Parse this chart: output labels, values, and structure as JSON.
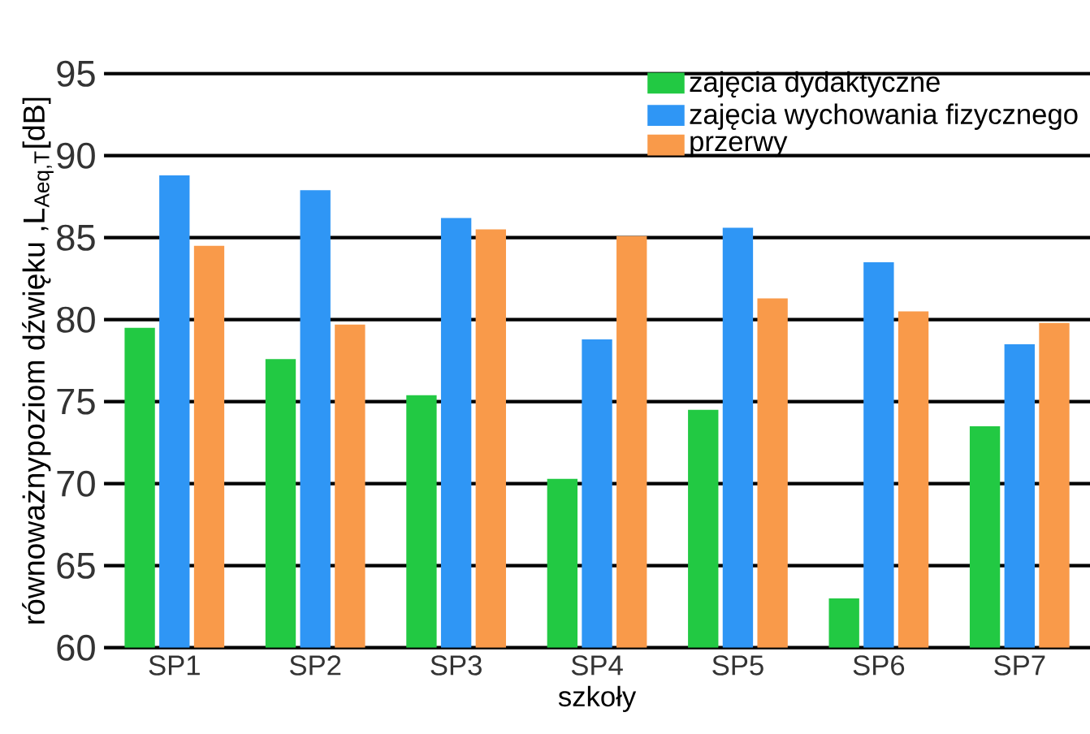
{
  "chart_data": {
    "type": "bar",
    "xlabel": "szkoły",
    "ylabel": "równoważnypoziom dźwięku ,L$_{Aeq,T}$[dB]",
    "categories": [
      "SP1",
      "SP2",
      "SP3",
      "SP4",
      "SP5",
      "SP6",
      "SP7"
    ],
    "series": [
      {
        "name": "zajęcia dydaktyczne",
        "color": "#22c943",
        "values": [
          79.5,
          77.6,
          75.4,
          70.3,
          74.5,
          63.0,
          73.5
        ]
      },
      {
        "name": "zajęcia wychowania fizycznego",
        "color": "#2f96f5",
        "values": [
          88.8,
          87.9,
          86.2,
          78.8,
          85.6,
          83.5,
          78.5
        ]
      },
      {
        "name": "przerwy",
        "color": "#f99a4a",
        "values": [
          84.5,
          79.7,
          85.5,
          85.1,
          81.3,
          80.5,
          79.8
        ]
      }
    ],
    "ylim": [
      60,
      95
    ],
    "yticks": [
      60,
      65,
      70,
      75,
      80,
      85,
      90,
      95
    ],
    "grid": "y",
    "legend": "top right"
  }
}
